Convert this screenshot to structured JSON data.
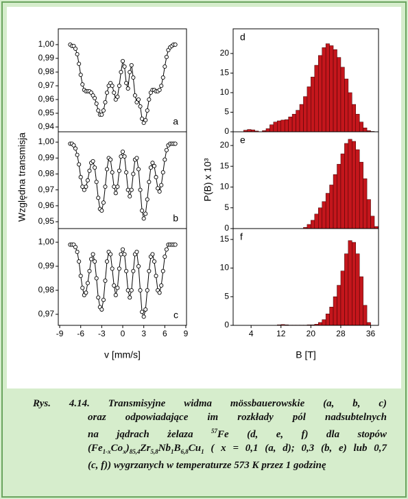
{
  "chart_data": [
    {
      "type": "scatter",
      "annotation": "a",
      "color": "#000000",
      "x": [
        -7.5,
        -7.25,
        -7.0,
        -6.75,
        -6.5,
        -6.25,
        -6.0,
        -5.75,
        -5.5,
        -5.25,
        -5.0,
        -4.75,
        -4.5,
        -4.25,
        -4.0,
        -3.75,
        -3.5,
        -3.25,
        -3.0,
        -2.75,
        -2.5,
        -2.25,
        -2.0,
        -1.75,
        -1.5,
        -1.25,
        -1.0,
        -0.75,
        -0.5,
        -0.25,
        0,
        0.25,
        0.5,
        0.75,
        1.0,
        1.25,
        1.5,
        1.75,
        2.0,
        2.25,
        2.5,
        2.75,
        3.0,
        3.25,
        3.5,
        3.75,
        4.0,
        4.25,
        4.5,
        4.75,
        5.0,
        5.25,
        5.5,
        5.75,
        6.0,
        6.25,
        6.5,
        6.75,
        7.0,
        7.25,
        7.5
      ],
      "values": [
        1.0,
        0.999,
        0.999,
        0.997,
        0.993,
        0.986,
        0.978,
        0.971,
        0.967,
        0.966,
        0.966,
        0.966,
        0.965,
        0.963,
        0.961,
        0.957,
        0.952,
        0.949,
        0.949,
        0.952,
        0.958,
        0.965,
        0.97,
        0.972,
        0.97,
        0.965,
        0.96,
        0.962,
        0.97,
        0.98,
        0.988,
        0.984,
        0.972,
        0.968,
        0.98,
        0.985,
        0.976,
        0.963,
        0.958,
        0.96,
        0.955,
        0.946,
        0.943,
        0.945,
        0.952,
        0.96,
        0.965,
        0.967,
        0.967,
        0.966,
        0.966,
        0.967,
        0.97,
        0.976,
        0.984,
        0.991,
        0.996,
        0.998,
        0.999,
        1.0,
        1.0
      ],
      "xlim": [
        -9.2,
        9.1
      ],
      "ylim": [
        0.9365,
        1.0115
      ],
      "yticks": [
        {
          "value": 0.94,
          "label": "0,94"
        },
        {
          "value": 0.95,
          "label": "0,95"
        },
        {
          "value": 0.96,
          "label": "0,96"
        },
        {
          "value": 0.97,
          "label": "0,97"
        },
        {
          "value": 0.98,
          "label": "0,98"
        },
        {
          "value": 0.99,
          "label": "0,99"
        },
        {
          "value": 1.0,
          "label": "1,00"
        }
      ]
    },
    {
      "type": "scatter",
      "annotation": "b",
      "color": "#000000",
      "ylabel": "Względna transmisja",
      "x": [
        -7.5,
        -7.25,
        -7.0,
        -6.75,
        -6.5,
        -6.25,
        -6.0,
        -5.75,
        -5.5,
        -5.25,
        -5.0,
        -4.75,
        -4.5,
        -4.25,
        -4.0,
        -3.75,
        -3.5,
        -3.25,
        -3.0,
        -2.75,
        -2.5,
        -2.25,
        -2.0,
        -1.75,
        -1.5,
        -1.25,
        -1.0,
        -0.75,
        -0.5,
        -0.25,
        0,
        0.25,
        0.5,
        0.75,
        1.0,
        1.25,
        1.5,
        1.75,
        2.0,
        2.25,
        2.5,
        2.75,
        3.0,
        3.25,
        3.5,
        3.75,
        4.0,
        4.25,
        4.5,
        4.75,
        5.0,
        5.25,
        5.5,
        5.75,
        6.0,
        6.25,
        6.5,
        6.75,
        7.0,
        7.25,
        7.5
      ],
      "values": [
        0.999,
        0.999,
        0.998,
        0.996,
        0.992,
        0.986,
        0.978,
        0.972,
        0.97,
        0.972,
        0.976,
        0.982,
        0.987,
        0.988,
        0.984,
        0.975,
        0.965,
        0.958,
        0.957,
        0.962,
        0.972,
        0.983,
        0.99,
        0.989,
        0.981,
        0.972,
        0.968,
        0.972,
        0.982,
        0.991,
        0.994,
        0.991,
        0.981,
        0.97,
        0.966,
        0.97,
        0.98,
        0.989,
        0.99,
        0.983,
        0.97,
        0.957,
        0.952,
        0.955,
        0.964,
        0.975,
        0.984,
        0.987,
        0.985,
        0.978,
        0.971,
        0.969,
        0.973,
        0.981,
        0.989,
        0.995,
        0.998,
        0.999,
        0.999,
        0.999,
        0.999
      ],
      "xlim": [
        -9.2,
        9.1
      ],
      "ylim": [
        0.9457,
        1.0065
      ],
      "yticks": [
        {
          "value": 0.95,
          "label": "0,95"
        },
        {
          "value": 0.96,
          "label": "0,96"
        },
        {
          "value": 0.97,
          "label": "0,97"
        },
        {
          "value": 0.98,
          "label": "0,98"
        },
        {
          "value": 0.99,
          "label": "0,99"
        },
        {
          "value": 1.0,
          "label": "1,00"
        }
      ]
    },
    {
      "type": "scatter",
      "annotation": "c",
      "color": "#000000",
      "xlabel": "v [mm/s]",
      "x": [
        -7.5,
        -7.25,
        -7.0,
        -6.75,
        -6.5,
        -6.25,
        -6.0,
        -5.75,
        -5.5,
        -5.25,
        -5.0,
        -4.75,
        -4.5,
        -4.25,
        -4.0,
        -3.75,
        -3.5,
        -3.25,
        -3.0,
        -2.75,
        -2.5,
        -2.25,
        -2.0,
        -1.75,
        -1.5,
        -1.25,
        -1.0,
        -0.75,
        -0.5,
        -0.25,
        0,
        0.25,
        0.5,
        0.75,
        1.0,
        1.25,
        1.5,
        1.75,
        2.0,
        2.25,
        2.5,
        2.75,
        3.0,
        3.25,
        3.5,
        3.75,
        4.0,
        4.25,
        4.5,
        4.75,
        5.0,
        5.25,
        5.5,
        5.75,
        6.0,
        6.25,
        6.5,
        6.75,
        7.0,
        7.25,
        7.5
      ],
      "values": [
        0.999,
        0.999,
        0.999,
        0.998,
        0.996,
        0.992,
        0.986,
        0.981,
        0.978,
        0.979,
        0.983,
        0.988,
        0.993,
        0.995,
        0.992,
        0.985,
        0.977,
        0.973,
        0.972,
        0.976,
        0.984,
        0.992,
        0.996,
        0.995,
        0.989,
        0.982,
        0.978,
        0.981,
        0.989,
        0.995,
        0.997,
        0.995,
        0.988,
        0.98,
        0.977,
        0.98,
        0.988,
        0.995,
        0.996,
        0.99,
        0.98,
        0.971,
        0.969,
        0.972,
        0.98,
        0.988,
        0.994,
        0.995,
        0.992,
        0.986,
        0.98,
        0.979,
        0.982,
        0.988,
        0.994,
        0.997,
        0.999,
        0.999,
        0.999,
        0.999,
        0.999
      ],
      "xlim": [
        -9.2,
        9.1
      ],
      "ylim": [
        0.9654,
        1.0057
      ],
      "xticks": [
        -9,
        -6,
        -3,
        0,
        3,
        6,
        9
      ],
      "yticks": [
        {
          "value": 0.97,
          "label": "0,97"
        },
        {
          "value": 0.98,
          "label": "0,98"
        },
        {
          "value": 0.99,
          "label": "0,99"
        },
        {
          "value": 1.0,
          "label": "1,00"
        }
      ]
    },
    {
      "type": "histogram",
      "annotation": "d",
      "color": "#c4161c",
      "bins": [
        2,
        3,
        4,
        5,
        6,
        7,
        8,
        9,
        10,
        11,
        12,
        13,
        14,
        15,
        16,
        17,
        18,
        19,
        20,
        21,
        22,
        23,
        24,
        25,
        26,
        27,
        28,
        29,
        30,
        31,
        32,
        33,
        34,
        35,
        36,
        37,
        38
      ],
      "values": [
        0.4,
        0.6,
        0.5,
        0.2,
        0,
        0.3,
        0.8,
        1.8,
        2.5,
        2.8,
        3.0,
        3.1,
        3.8,
        4.5,
        5.5,
        7.0,
        9.0,
        11.5,
        14.0,
        17.0,
        19.5,
        21.5,
        22.5,
        22.0,
        21.0,
        19.0,
        16.5,
        13.5,
        10.0,
        7.0,
        4.5,
        2.5,
        1.0,
        0.3,
        0.1,
        0
      ],
      "xlim": [
        -0.8,
        38.1
      ],
      "ylim": [
        0,
        26.3
      ],
      "yticks": [
        0,
        5,
        10,
        15,
        20
      ]
    },
    {
      "type": "histogram",
      "annotation": "e",
      "color": "#c4161c",
      "ylabel": "P(B) x 10³",
      "bins": [
        2,
        3,
        4,
        5,
        6,
        7,
        8,
        9,
        10,
        11,
        12,
        13,
        14,
        15,
        16,
        17,
        18,
        19,
        20,
        21,
        22,
        23,
        24,
        25,
        26,
        27,
        28,
        29,
        30,
        31,
        32,
        33,
        34,
        35,
        36,
        37,
        38
      ],
      "values": [
        0,
        0,
        0,
        0,
        0,
        0,
        0,
        0,
        0,
        0,
        0,
        0,
        0,
        0,
        0,
        0,
        0.3,
        1.0,
        2.0,
        3.5,
        5.0,
        6.5,
        8.5,
        10.5,
        13.0,
        15.5,
        18.0,
        20.5,
        21.5,
        21.0,
        19.0,
        16.0,
        12.0,
        7.0,
        3.0,
        0.5
      ],
      "xlim": [
        -0.8,
        38.1
      ],
      "ylim": [
        0,
        23.3
      ],
      "yticks": [
        0,
        5,
        10,
        15,
        20
      ]
    },
    {
      "type": "histogram",
      "annotation": "f",
      "color": "#c4161c",
      "xlabel": "B [T]",
      "bins": [
        2,
        3,
        4,
        5,
        6,
        7,
        8,
        9,
        10,
        11,
        12,
        13,
        14,
        15,
        16,
        17,
        18,
        19,
        20,
        21,
        22,
        23,
        24,
        25,
        26,
        27,
        28,
        29,
        30,
        31,
        32,
        33,
        34,
        35,
        36,
        37,
        38
      ],
      "values": [
        0,
        0,
        0,
        0,
        0,
        0,
        0,
        0,
        0,
        0.1,
        0.15,
        0.1,
        0.05,
        0.05,
        0.05,
        0.05,
        0.05,
        0.1,
        0.1,
        0.2,
        0.5,
        1.0,
        2.0,
        3.2,
        5.0,
        7.0,
        9.5,
        12.5,
        14.8,
        14.5,
        12.5,
        8.5,
        3.5,
        0.5,
        0,
        0
      ],
      "xlim": [
        -0.8,
        38.1
      ],
      "ylim": [
        0,
        16.9
      ],
      "xticks": [
        4,
        12,
        20,
        28,
        36
      ],
      "yticks": [
        0,
        5,
        10,
        15
      ]
    }
  ],
  "caption": {
    "lines": [
      [
        "Rys. 4.14. Transmisyjne widma mössbauerowskie (a, b, c)"
      ],
      [
        "oraz odpowiadające im rozkłady pól nadsubtelnych"
      ],
      [
        "na jądrach żelaza ",
        {
          "text": "57",
          "script": "sup"
        },
        "Fe (d, e, f) dla stopów"
      ],
      [
        "(Fe",
        {
          "text": "1-x",
          "script": "sub"
        },
        "Co",
        {
          "text": "x",
          "script": "sub"
        },
        ")",
        {
          "text": "85,4",
          "script": "sub"
        },
        "Zr",
        {
          "text": "5,8",
          "script": "sub"
        },
        "Nb",
        {
          "text": "1",
          "script": "sub"
        },
        "B",
        {
          "text": "6,8",
          "script": "sub"
        },
        "Cu",
        {
          "text": "1",
          "script": "sub"
        },
        " ( x = 0,1 (a, d); 0,3 (b, e) lub 0,7"
      ],
      [
        "(c, f)) wygrzanych w temperaturze 573 K przez 1 godzinę"
      ]
    ]
  }
}
